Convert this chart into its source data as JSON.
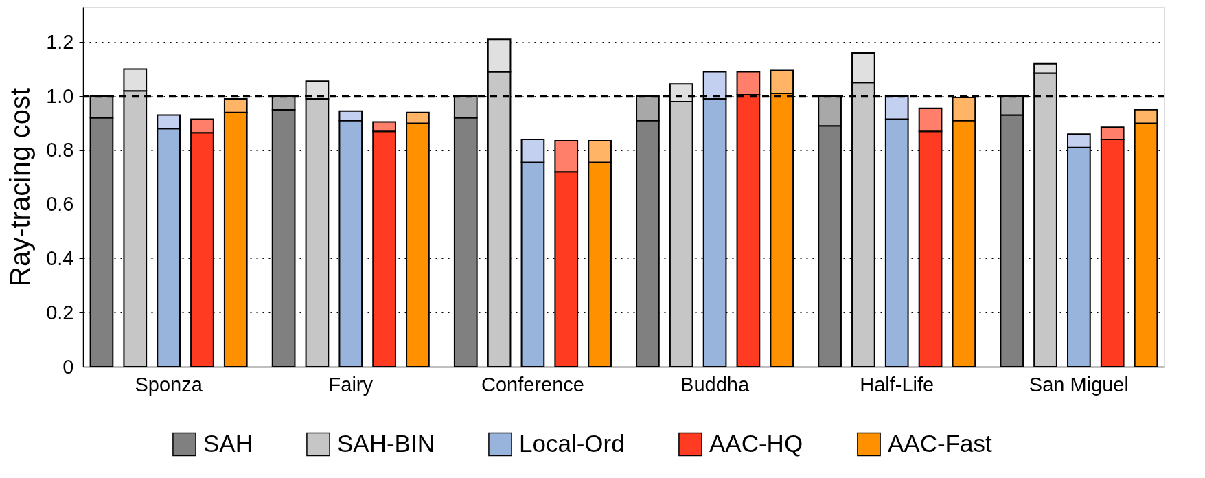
{
  "chart_data": {
    "type": "bar",
    "ylabel": "Ray-tracing cost",
    "stacked": true,
    "categories": [
      null,
      null,
      "Sponza",
      null,
      null,
      null,
      null,
      "Fairy",
      null,
      null,
      null,
      null,
      "Conference",
      null,
      null,
      null,
      null,
      "Buddha",
      null,
      null,
      null,
      null,
      "Half-Life",
      null,
      null,
      null,
      null,
      "San Miguel",
      null,
      null
    ],
    "series": [
      {
        "name": "SAH",
        "color": "#808080",
        "values": [
          0.92,
          null,
          null,
          null,
          null,
          0.95,
          null,
          null,
          null,
          null,
          0.92,
          null,
          null,
          null,
          null,
          0.91,
          null,
          null,
          null,
          null,
          0.89,
          null,
          null,
          null,
          null,
          0.93,
          null,
          null,
          null,
          null
        ]
      },
      {
        "name": "SAH-BIN",
        "color": "#c6c6c6",
        "values": [
          null,
          1.02,
          null,
          null,
          null,
          null,
          0.99,
          null,
          null,
          null,
          null,
          1.09,
          null,
          null,
          null,
          null,
          0.98,
          null,
          null,
          null,
          null,
          1.05,
          null,
          null,
          null,
          null,
          1.085,
          null,
          null,
          null
        ]
      },
      {
        "name": "Local-Ord",
        "color": "#98b4dc",
        "values": [
          null,
          null,
          0.88,
          null,
          null,
          null,
          null,
          0.91,
          null,
          null,
          null,
          null,
          0.755,
          null,
          null,
          null,
          null,
          0.99,
          null,
          null,
          null,
          null,
          0.915,
          null,
          null,
          null,
          null,
          0.81,
          null,
          null
        ]
      },
      {
        "name": "AAC-HQ",
        "color": "#ff3c22",
        "values": [
          null,
          null,
          null,
          0.865,
          null,
          null,
          null,
          null,
          0.87,
          null,
          null,
          null,
          null,
          0.72,
          null,
          null,
          null,
          null,
          1.005,
          null,
          null,
          null,
          null,
          0.87,
          null,
          null,
          null,
          null,
          0.84,
          null
        ]
      },
      {
        "name": "AAC-Fast",
        "color": "#ff9000",
        "values": [
          null,
          null,
          null,
          null,
          0.94,
          null,
          null,
          null,
          null,
          0.9,
          null,
          null,
          null,
          null,
          0.755,
          null,
          null,
          null,
          null,
          1.01,
          null,
          null,
          null,
          null,
          0.91,
          null,
          null,
          null,
          null,
          0.9
        ]
      },
      {
        "color": "#a8a8a8",
        "values": [
          0.08,
          null,
          null,
          null,
          null,
          0.05,
          null,
          null,
          null,
          null,
          0.08,
          null,
          null,
          null,
          null,
          0.09,
          null,
          null,
          null,
          null,
          0.11,
          null,
          null,
          null,
          null,
          0.07,
          null,
          null,
          null,
          null
        ]
      },
      {
        "color": "#e0e0e0",
        "values": [
          null,
          0.08,
          null,
          null,
          null,
          null,
          0.065,
          null,
          null,
          null,
          null,
          0.12,
          null,
          null,
          null,
          null,
          0.065,
          null,
          null,
          null,
          null,
          0.11,
          null,
          null,
          null,
          null,
          0.035,
          null,
          null,
          null
        ]
      },
      {
        "color": "#c4d0f0",
        "values": [
          null,
          null,
          0.05,
          null,
          null,
          null,
          null,
          0.035,
          null,
          null,
          null,
          null,
          0.085,
          null,
          null,
          null,
          null,
          0.1,
          null,
          null,
          null,
          null,
          0.085,
          null,
          null,
          null,
          null,
          0.05,
          null,
          null
        ]
      },
      {
        "color": "#ff7f6a",
        "values": [
          null,
          null,
          null,
          0.05,
          null,
          null,
          null,
          null,
          0.035,
          null,
          null,
          null,
          null,
          0.115,
          null,
          null,
          null,
          null,
          0.085,
          null,
          null,
          null,
          null,
          0.085,
          null,
          null,
          null,
          null,
          0.045,
          null
        ]
      },
      {
        "color": "#ffb466",
        "values": [
          null,
          null,
          null,
          null,
          0.05,
          null,
          null,
          null,
          null,
          0.04,
          null,
          null,
          null,
          null,
          0.08,
          null,
          null,
          null,
          null,
          0.085,
          null,
          null,
          null,
          null,
          0.085,
          null,
          null,
          null,
          null,
          0.05
        ]
      }
    ],
    "ylim": [
      0,
      1.33
    ],
    "yticks": [
      0,
      0.2,
      0.4,
      0.6,
      0.8,
      {
        "value": 1,
        "label": "1.0"
      },
      1.2
    ],
    "grid": "y",
    "ref_lines": [
      {
        "axis": "y",
        "value": 1,
        "line_style": "dashed"
      }
    ],
    "legend": "bottom"
  }
}
